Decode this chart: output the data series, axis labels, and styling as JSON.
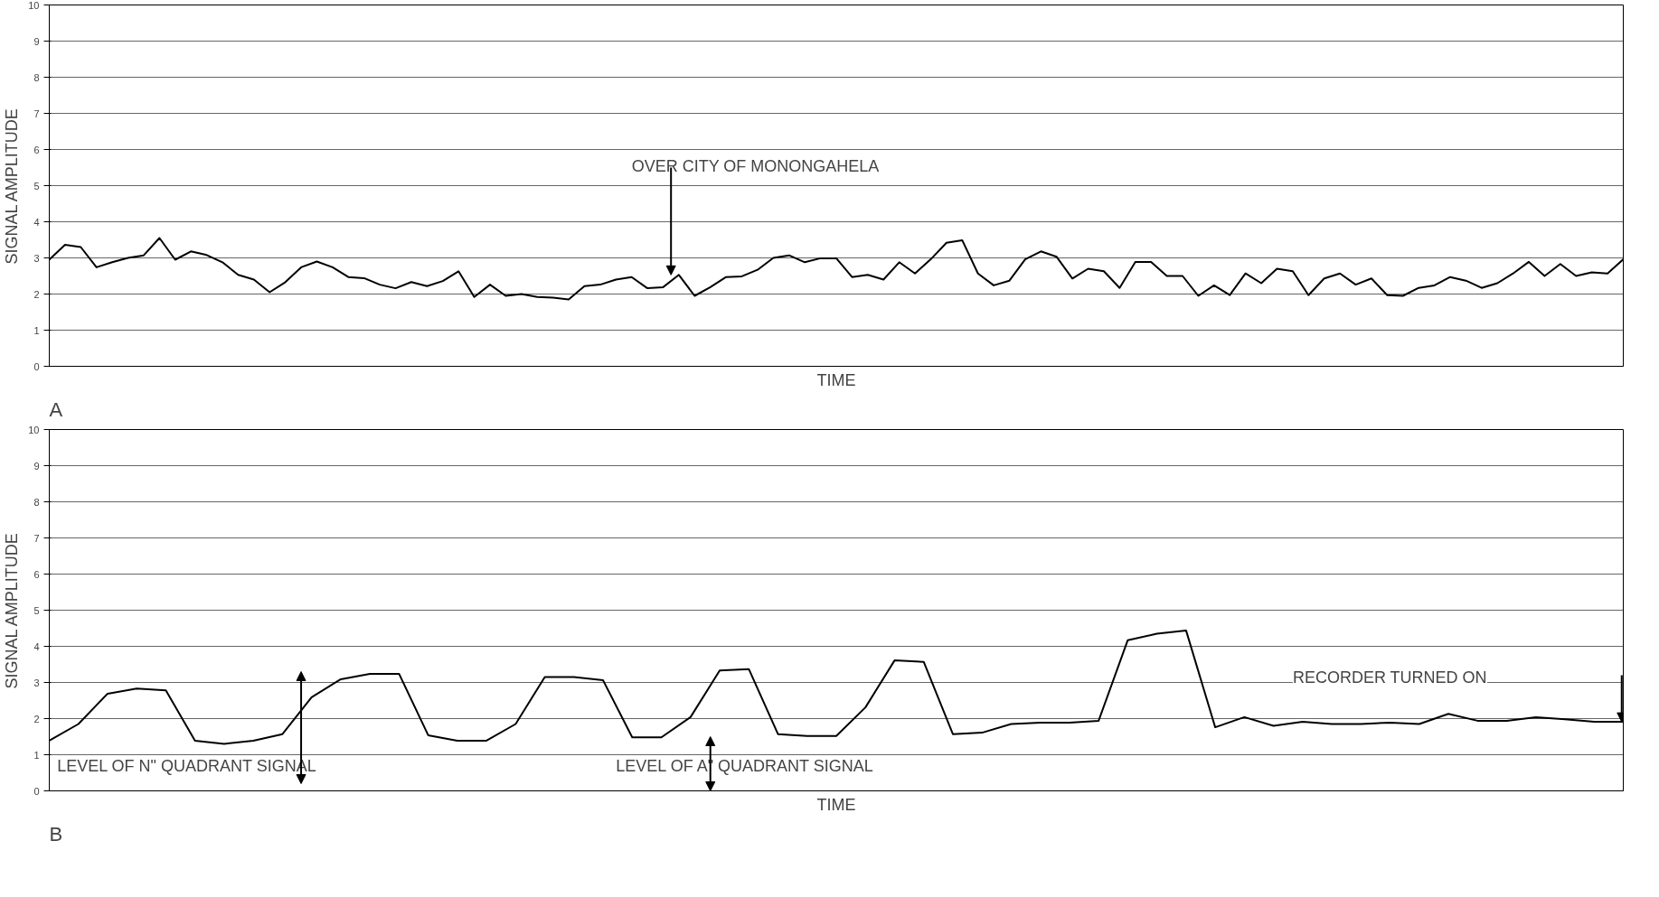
{
  "chart_data": [
    {
      "type": "line",
      "title": "A",
      "xlabel": "TIME",
      "ylabel": "SIGNAL AMPLITUDE",
      "ylim": [
        0,
        10
      ],
      "yticks": [
        0,
        1,
        2,
        3,
        4,
        5,
        6,
        7,
        8,
        9,
        10
      ],
      "grid": "y",
      "tick_labels": "y",
      "annotations": [
        "OVER CITY OF MONONGAHELA"
      ],
      "categories": [
        null,
        null,
        null,
        null,
        null,
        null,
        null,
        null,
        null,
        null,
        null,
        null,
        null,
        null,
        null,
        null,
        null,
        null,
        null,
        null,
        null,
        null,
        null,
        null,
        null,
        null,
        null,
        null,
        null,
        null,
        null,
        null,
        null,
        null,
        null,
        null,
        null,
        null,
        null,
        null,
        null,
        null,
        null,
        null,
        null,
        null,
        null,
        null,
        null,
        null,
        null,
        null,
        null,
        null,
        null,
        null,
        null,
        null,
        null,
        null,
        null,
        null,
        null,
        null,
        null,
        null,
        null,
        null,
        null,
        null,
        null,
        null,
        null,
        null,
        null,
        null,
        null,
        null,
        null,
        null,
        null,
        null,
        null,
        null,
        null,
        null,
        null,
        null,
        null,
        null,
        null,
        null,
        null,
        null,
        null,
        null,
        null,
        null,
        null,
        null,
        null
      ],
      "series": [
        {
          "color": "#000000",
          "values": [
            2.95,
            3.36,
            3.3,
            2.74,
            2.88,
            3.0,
            3.07,
            3.55,
            2.95,
            3.18,
            3.08,
            2.88,
            2.53,
            2.4,
            2.05,
            2.33,
            2.74,
            2.9,
            2.74,
            2.47,
            2.44,
            2.26,
            2.16,
            2.33,
            2.22,
            2.36,
            2.63,
            1.92,
            2.26,
            1.95,
            2.0,
            1.92,
            1.9,
            1.85,
            2.22,
            2.26,
            2.4,
            2.47,
            2.16,
            2.19,
            2.53,
            1.95,
            2.19,
            2.47,
            2.49,
            2.67,
            3.0,
            3.07,
            2.88,
            2.99,
            2.99,
            2.47,
            2.53,
            2.4,
            2.88,
            2.57,
            2.96,
            3.42,
            3.49,
            2.57,
            2.24,
            2.37,
            2.96,
            3.18,
            3.03,
            2.43,
            2.7,
            2.63,
            2.17,
            2.89,
            2.89,
            2.5,
            2.5,
            1.95,
            2.24,
            1.97,
            2.57,
            2.3,
            2.7,
            2.63,
            1.97,
            2.43,
            2.57,
            2.26,
            2.43,
            1.97,
            1.95,
            2.17,
            2.24,
            2.47,
            2.37,
            2.17,
            2.3,
            2.57,
            2.89,
            2.5,
            2.83,
            2.5,
            2.6,
            2.57,
            2.96
          ]
        }
      ]
    },
    {
      "type": "line",
      "title": "B",
      "xlabel": "TIME",
      "ylabel": "SIGNAL AMPLITUDE",
      "ylim": [
        0,
        10
      ],
      "yticks": [
        0,
        1,
        2,
        3,
        4,
        5,
        6,
        7,
        8,
        9,
        10
      ],
      "grid": "y",
      "tick_labels": "y",
      "annotations": [
        "LEVEL OF N\" QUADRANT SIGNAL",
        "LEVEL OF A\" QUADRANT SIGNAL",
        "RECORDER TURNED ON"
      ],
      "categories": [
        null,
        null,
        null,
        null,
        null,
        null,
        null,
        null,
        null,
        null,
        null,
        null,
        null,
        null,
        null,
        null,
        null,
        null,
        null,
        null,
        null,
        null,
        null,
        null,
        null,
        null,
        null,
        null,
        null,
        null,
        null,
        null,
        null,
        null,
        null,
        null,
        null,
        null,
        null,
        null,
        null,
        null,
        null,
        null,
        null,
        null,
        null,
        null,
        null,
        null,
        null,
        null,
        null,
        null,
        null
      ],
      "series": [
        {
          "color": "#000000",
          "values": [
            1.39,
            1.85,
            2.69,
            2.83,
            2.78,
            1.39,
            1.3,
            1.39,
            1.57,
            2.59,
            3.09,
            3.24,
            3.24,
            1.54,
            1.39,
            1.39,
            1.85,
            3.15,
            3.15,
            3.06,
            1.48,
            1.48,
            2.04,
            3.33,
            3.37,
            1.57,
            1.52,
            1.52,
            2.31,
            3.61,
            3.57,
            1.57,
            1.61,
            1.85,
            1.89,
            1.89,
            1.94,
            4.17,
            4.35,
            4.44,
            1.76,
            2.04,
            1.8,
            1.91,
            1.85,
            1.85,
            1.89,
            1.85,
            2.13,
            1.94,
            1.94,
            2.04,
            1.98,
            1.91,
            1.91
          ]
        }
      ]
    }
  ]
}
